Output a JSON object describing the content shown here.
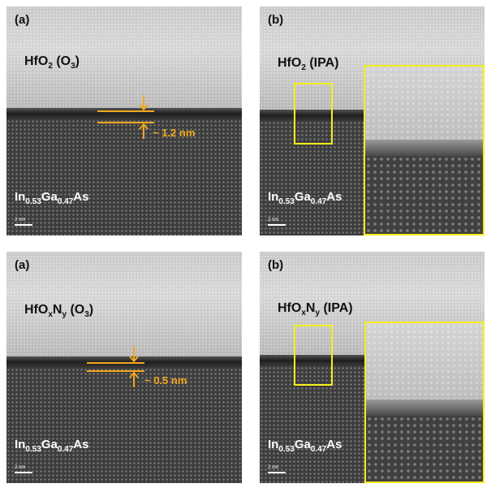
{
  "panels": [
    {
      "label": "(a)",
      "film": [
        "HfO",
        "2",
        " (O",
        "3",
        ")"
      ],
      "substrate": [
        "In",
        "0.53",
        "Ga",
        "0.47",
        "As"
      ],
      "annotation": "~ 1.2 nm",
      "scale": "2 nm"
    },
    {
      "label": "(b)",
      "film": [
        "HfO",
        "2",
        " (IPA)"
      ],
      "substrate": [
        "In",
        "0.53",
        "Ga",
        "0.47",
        "As"
      ],
      "scale": "2 nm"
    },
    {
      "label": "(a)",
      "film": [
        "HfO",
        "x",
        "N",
        "y",
        " (O",
        "3",
        ")"
      ],
      "substrate": [
        "In",
        "0.53",
        "Ga",
        "0.47",
        "As"
      ],
      "annotation": "~ 0.5 nm",
      "scale": "2 nm"
    },
    {
      "label": "(b)",
      "film": [
        "HfO",
        "x",
        "N",
        "y",
        " (IPA)"
      ],
      "substrate": [
        "In",
        "0.53",
        "Ga",
        "0.47",
        "As"
      ],
      "scale": "2 nm"
    }
  ]
}
